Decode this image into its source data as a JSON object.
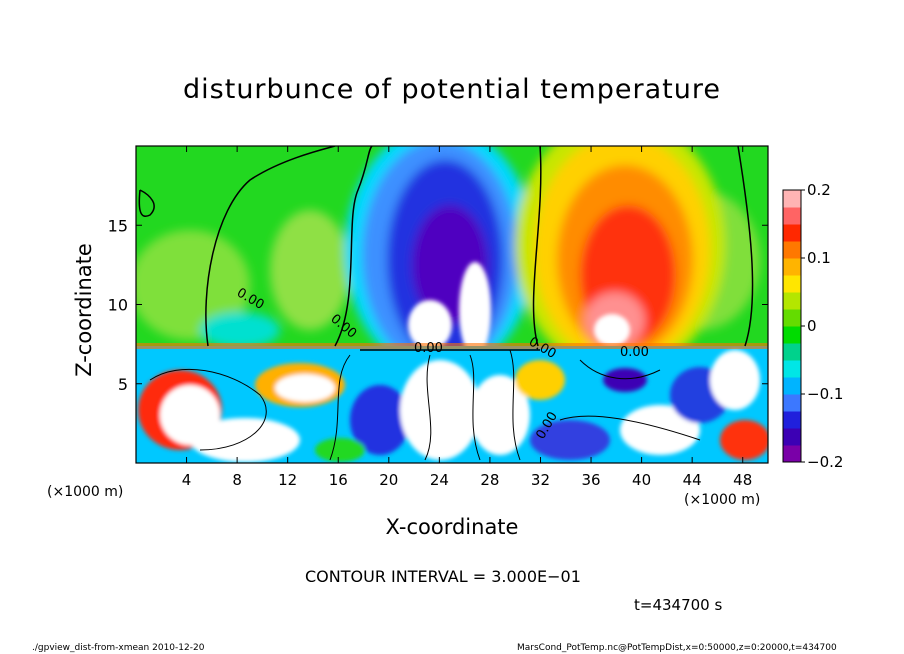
{
  "chart_data": {
    "type": "heatmap",
    "title": "disturbunce of potential temperature",
    "xlabel": "X-coordinate",
    "ylabel": "Z-coordinate",
    "x_unit_label": "(×1000 m)",
    "xlim": [
      0,
      50
    ],
    "ylim": [
      0,
      20
    ],
    "x_ticks": [
      4,
      8,
      12,
      16,
      20,
      24,
      28,
      32,
      36,
      40,
      44,
      48
    ],
    "y_ticks": [
      5,
      10,
      15
    ],
    "colorbar": {
      "range": [
        -0.2,
        0.2
      ],
      "ticks": [
        {
          "value": 0.2,
          "label": "0.2"
        },
        {
          "value": 0.1,
          "label": "0.1"
        },
        {
          "value": 0,
          "label": "0"
        },
        {
          "value": -0.1,
          "label": "−0.1"
        },
        {
          "value": -0.2,
          "label": "−0.2"
        }
      ],
      "colors": [
        "#7a00a8",
        "#3c00b4",
        "#2020dc",
        "#3c78ff",
        "#00b4ff",
        "#00e6e6",
        "#00d28c",
        "#00dc00",
        "#64dc00",
        "#b4e600",
        "#ffe600",
        "#ffb400",
        "#ff7800",
        "#ff2800",
        "#ff6464",
        "#ffb4b4"
      ]
    },
    "contour_labels": [
      "0.00",
      "0.00",
      "0.00",
      "0.00",
      "0.00",
      "0.00"
    ],
    "annotations": {
      "contour_interval": "CONTOUR INTERVAL = 3.000E−01",
      "time": "t=434700 s"
    }
  },
  "footer": {
    "left": "./gpview_dist-from-xmean  2010-12-20",
    "right": "MarsCond_PotTemp.nc@PotTempDist,x=0:50000,z=0:20000,t=434700"
  }
}
